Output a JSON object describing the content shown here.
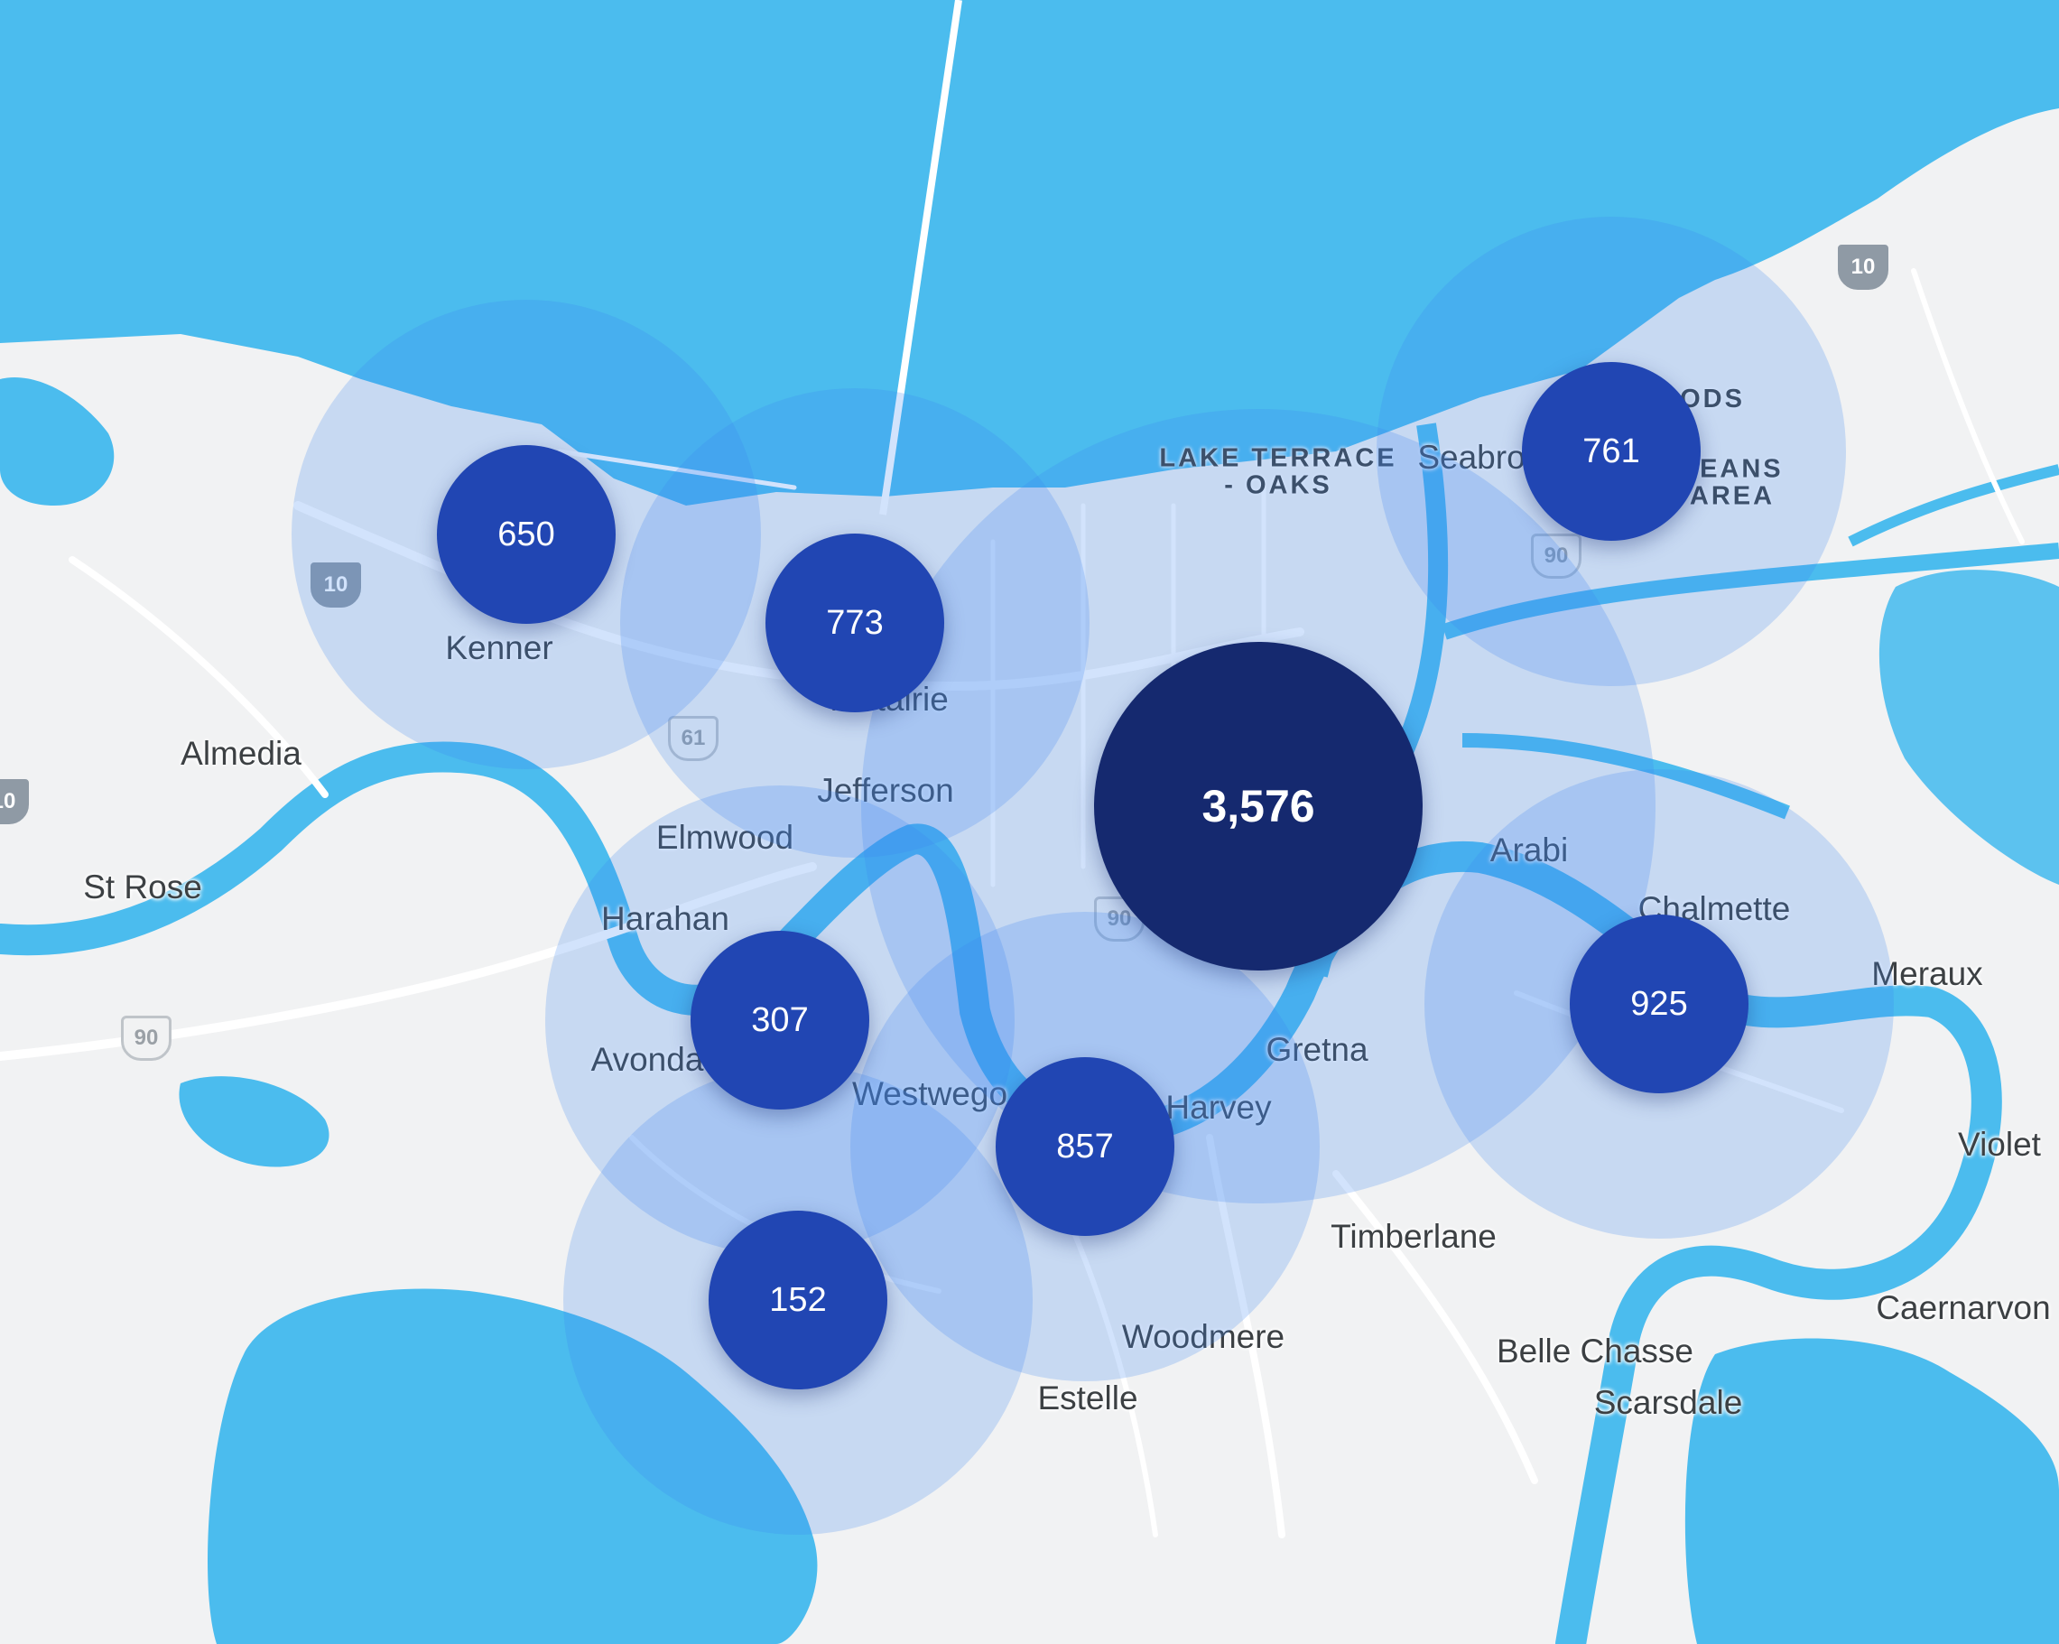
{
  "colors": {
    "water": "#4bbcee",
    "land": "#f1f2f3",
    "road": "#ffffff",
    "halo": "rgba(60,135,240,0.23)",
    "marker": "#2146b3",
    "marker_large": "#15296f"
  },
  "place_labels": [
    {
      "id": "kenner",
      "text": "Kenner"
    },
    {
      "id": "almedia",
      "text": "Almedia"
    },
    {
      "id": "st-rose",
      "text": "St Rose"
    },
    {
      "id": "metairie",
      "text": "Metairie"
    },
    {
      "id": "jefferson",
      "text": "Jefferson"
    },
    {
      "id": "elmwood",
      "text": "Elmwood"
    },
    {
      "id": "harahan",
      "text": "Harahan"
    },
    {
      "id": "avondale",
      "text": "Avonda"
    },
    {
      "id": "westwego",
      "text": "Westwego"
    },
    {
      "id": "harvey",
      "text": "Harvey"
    },
    {
      "id": "gretna",
      "text": "Gretna"
    },
    {
      "id": "arabi",
      "text": "Arabi"
    },
    {
      "id": "chalmette",
      "text": "Chalmette"
    },
    {
      "id": "meraux",
      "text": "Meraux"
    },
    {
      "id": "violet",
      "text": "Violet"
    },
    {
      "id": "timberlane",
      "text": "Timberlane"
    },
    {
      "id": "woodmere",
      "text": "Woodmere"
    },
    {
      "id": "estelle",
      "text": "Estelle"
    },
    {
      "id": "belle-chasse",
      "text": "Belle Chasse"
    },
    {
      "id": "scarsdale",
      "text": "Scarsdale"
    },
    {
      "id": "caernarvon",
      "text": "Caernarvon"
    },
    {
      "id": "seabrook",
      "text": "Seabro"
    }
  ],
  "area_labels": [
    {
      "id": "lake-terrace-oaks",
      "text": "LAKE TERRACE\n- OAKS"
    },
    {
      "id": "woods",
      "text": "ODS"
    },
    {
      "id": "orleans-area",
      "text": "LEANS\nAREA"
    }
  ],
  "highway_shields": [
    {
      "id": "i10-west",
      "label": "10",
      "type": "interstate"
    },
    {
      "id": "i10-east",
      "label": "10",
      "type": "interstate"
    },
    {
      "id": "i10-edge",
      "label": "10",
      "type": "interstate"
    },
    {
      "id": "us61",
      "label": "61",
      "type": "us"
    },
    {
      "id": "us90-west",
      "label": "90",
      "type": "us"
    },
    {
      "id": "us90-center",
      "label": "90",
      "type": "us"
    },
    {
      "id": "us90-east",
      "label": "90",
      "type": "us"
    }
  ],
  "clusters": [
    {
      "id": "kenner",
      "count": "650",
      "size": "medium"
    },
    {
      "id": "metairie",
      "count": "773",
      "size": "medium"
    },
    {
      "id": "new-orleans-east",
      "count": "761",
      "size": "medium"
    },
    {
      "id": "new-orleans",
      "count": "3,576",
      "size": "large"
    },
    {
      "id": "avondale",
      "count": "307",
      "size": "medium"
    },
    {
      "id": "westwego",
      "count": "857",
      "size": "medium"
    },
    {
      "id": "chalmette",
      "count": "925",
      "size": "medium"
    },
    {
      "id": "lake-cataouatche",
      "count": "152",
      "size": "medium"
    }
  ]
}
